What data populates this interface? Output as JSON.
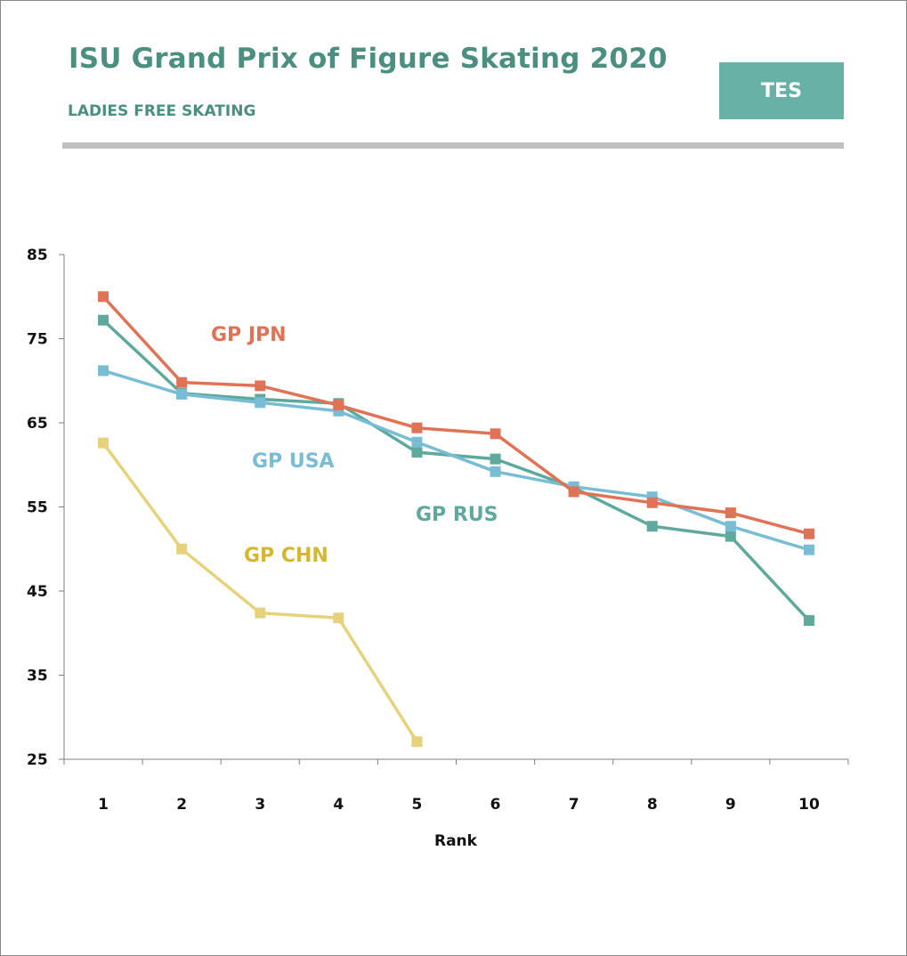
{
  "header": {
    "title": "ISU Grand Prix of Figure Skating 2020",
    "subtitle": "LADIES FREE SKATING",
    "badge": "TES"
  },
  "colors": {
    "accent": "#4a8f80",
    "badge_bg": "#67b1a6",
    "rule": "#bfbfbf"
  },
  "chart_data": {
    "type": "line",
    "title": "ISU Grand Prix of Figure Skating 2020",
    "subtitle": "LADIES FREE SKATING",
    "xlabel": "Rank",
    "ylabel": "",
    "categories": [
      "1",
      "2",
      "3",
      "4",
      "5",
      "6",
      "7",
      "8",
      "9",
      "10"
    ],
    "ylim": [
      25,
      85
    ],
    "yticks": [
      "25",
      "35",
      "45",
      "55",
      "65",
      "75",
      "85"
    ],
    "grid": false,
    "series": [
      {
        "name": "GP CHN",
        "color": "#e6d27a",
        "label_color": "#d4b72c",
        "values": [
          62.6,
          50.0,
          42.4,
          41.8,
          27.1,
          null,
          null,
          null,
          null,
          null
        ]
      },
      {
        "name": "GP RUS",
        "color": "#5ea99d",
        "label_color": "#5ea99d",
        "values": [
          77.2,
          68.5,
          67.8,
          67.3,
          61.5,
          60.7,
          57.3,
          52.7,
          51.5,
          41.5
        ]
      },
      {
        "name": "GP USA",
        "color": "#79bdd5",
        "label_color": "#79bdd5",
        "values": [
          71.2,
          68.4,
          67.4,
          66.4,
          62.7,
          59.2,
          57.4,
          56.2,
          52.7,
          49.9
        ]
      },
      {
        "name": "GP JPN",
        "color": "#e07355",
        "label_color": "#e07355",
        "values": [
          80.0,
          69.8,
          69.4,
          67.1,
          64.4,
          63.7,
          56.8,
          55.5,
          54.3,
          51.8
        ]
      }
    ]
  }
}
